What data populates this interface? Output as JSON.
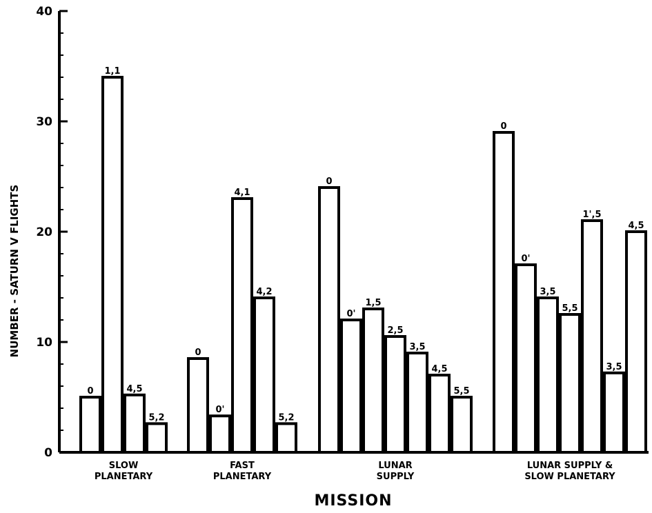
{
  "chart_data": {
    "type": "bar",
    "title": "",
    "xlabel": "MISSION",
    "ylabel": "NUMBER - SATURN V FLIGHTS",
    "ylim": [
      0,
      40
    ],
    "yticks": [
      0,
      10,
      20,
      30,
      40
    ],
    "grid": false,
    "groups": [
      {
        "label_lines": [
          "SLOW",
          "PLANETARY"
        ],
        "bars": [
          {
            "label": "0",
            "value": 5
          },
          {
            "label": "1,1",
            "value": 34
          },
          {
            "label": "4,5",
            "value": 5.2
          },
          {
            "label": "5,2",
            "value": 2.6
          }
        ]
      },
      {
        "label_lines": [
          "FAST",
          "PLANETARY"
        ],
        "bars": [
          {
            "label": "0",
            "value": 8.5
          },
          {
            "label": "0'",
            "value": 3.3
          },
          {
            "label": "4,1",
            "value": 23
          },
          {
            "label": "4,2",
            "value": 14
          },
          {
            "label": "5,2",
            "value": 2.6
          }
        ]
      },
      {
        "label_lines": [
          "LUNAR",
          "SUPPLY"
        ],
        "bars": [
          {
            "label": "0",
            "value": 24
          },
          {
            "label": "0'",
            "value": 12
          },
          {
            "label": "1,5",
            "value": 13
          },
          {
            "label": "2,5",
            "value": 10.5
          },
          {
            "label": "3,5",
            "value": 9
          },
          {
            "label": "4,5",
            "value": 7
          },
          {
            "label": "5,5",
            "value": 5
          }
        ]
      },
      {
        "label_lines": [
          "LUNAR  SUPPLY &",
          "SLOW  PLANETARY"
        ],
        "bars": [
          {
            "label": "0",
            "value": 29
          },
          {
            "label": "0'",
            "value": 17
          },
          {
            "label": "3,5",
            "value": 14
          },
          {
            "label": "5,5",
            "value": 12.5
          },
          {
            "label": "1',5",
            "value": 21
          },
          {
            "label": "3,5",
            "value": 7.2
          },
          {
            "label": "4,5",
            "value": 20
          }
        ]
      }
    ]
  }
}
